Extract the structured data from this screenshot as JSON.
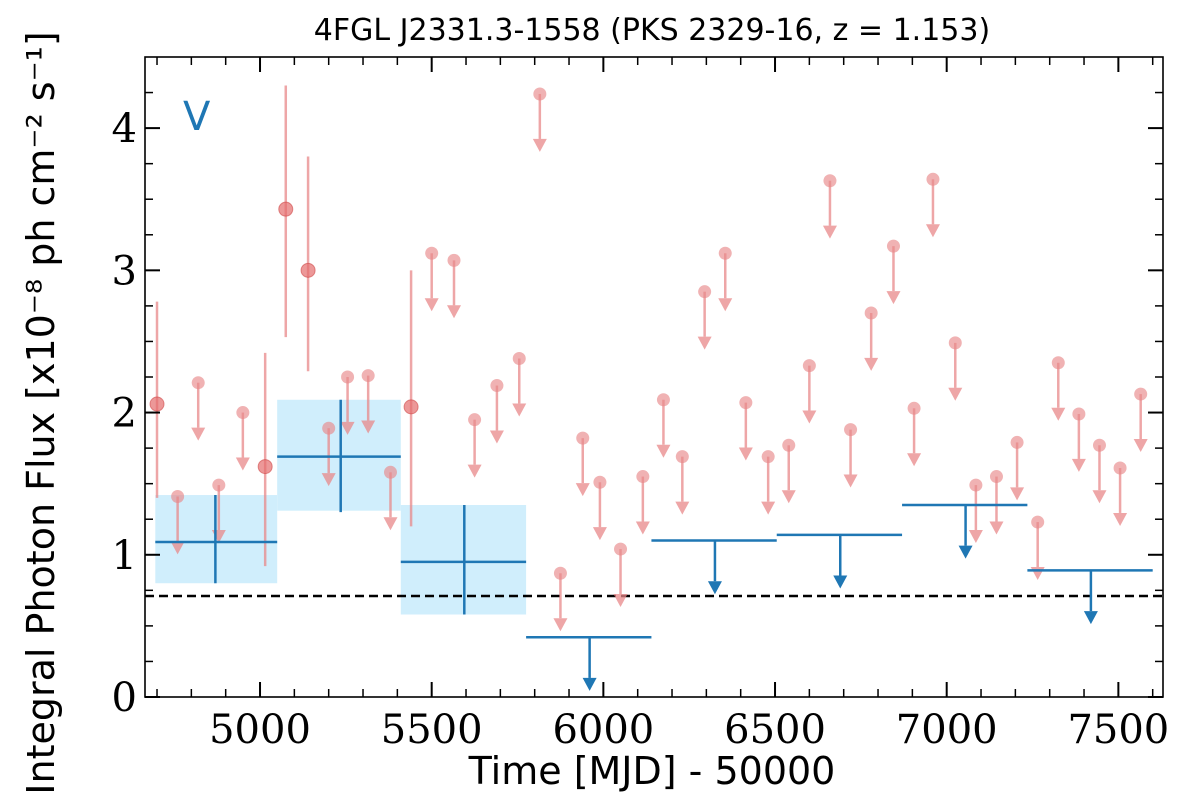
{
  "chart_data": {
    "type": "scatter",
    "title": "4FGL J2331.3-1558 (PKS 2329-16, z = 1.153)",
    "band_label": "V",
    "xlabel": "Time [MJD] - 50000",
    "ylabel": "Integral Photon Flux [x10⁻⁸ ph cm⁻² s⁻¹]",
    "xlim": [
      4665,
      7630
    ],
    "ylim": [
      0,
      4.5
    ],
    "x_ticks": [
      5000,
      5500,
      6000,
      6500,
      7000,
      7500
    ],
    "x_tick_labels": [
      "5000",
      "5500",
      "6000",
      "6500",
      "7000",
      "7500"
    ],
    "y_ticks": [
      0,
      1,
      2,
      3,
      4
    ],
    "y_tick_labels": [
      "0",
      "1",
      "2",
      "3",
      "4"
    ],
    "reference_level": 0.71,
    "colors": {
      "short_bin": "#e8888a",
      "short_bin_face": "#e46c6c",
      "long_bin": "#1f77b4",
      "long_bin_band": "#d0eefc",
      "reference_line": "#000000"
    },
    "short_bin_detections": [
      {
        "x": 4700,
        "y": 2.06,
        "y_low": 1.4,
        "y_high": 2.78
      },
      {
        "x": 5015,
        "y": 1.62,
        "y_low": 0.92,
        "y_high": 2.42
      },
      {
        "x": 5075,
        "y": 3.43,
        "y_low": 2.53,
        "y_high": 4.3
      },
      {
        "x": 5140,
        "y": 3.0,
        "y_low": 2.29,
        "y_high": 3.8
      },
      {
        "x": 5440,
        "y": 2.04,
        "y_low": 1.2,
        "y_high": 3.0
      }
    ],
    "short_bin_upper_limits": [
      {
        "x": 4760,
        "y": 1.41
      },
      {
        "x": 4820,
        "y": 2.21
      },
      {
        "x": 4880,
        "y": 1.49
      },
      {
        "x": 4950,
        "y": 2.0
      },
      {
        "x": 5200,
        "y": 1.89
      },
      {
        "x": 5255,
        "y": 2.25
      },
      {
        "x": 5315,
        "y": 2.26
      },
      {
        "x": 5380,
        "y": 1.58
      },
      {
        "x": 5500,
        "y": 3.12
      },
      {
        "x": 5565,
        "y": 3.07
      },
      {
        "x": 5625,
        "y": 1.95
      },
      {
        "x": 5690,
        "y": 2.19
      },
      {
        "x": 5755,
        "y": 2.38
      },
      {
        "x": 5815,
        "y": 4.24
      },
      {
        "x": 5875,
        "y": 0.87
      },
      {
        "x": 5940,
        "y": 1.82
      },
      {
        "x": 5990,
        "y": 1.51
      },
      {
        "x": 6050,
        "y": 1.04
      },
      {
        "x": 6115,
        "y": 1.55
      },
      {
        "x": 6175,
        "y": 2.09
      },
      {
        "x": 6230,
        "y": 1.69
      },
      {
        "x": 6295,
        "y": 2.85
      },
      {
        "x": 6355,
        "y": 3.12
      },
      {
        "x": 6415,
        "y": 2.07
      },
      {
        "x": 6480,
        "y": 1.69
      },
      {
        "x": 6540,
        "y": 1.77
      },
      {
        "x": 6600,
        "y": 2.33
      },
      {
        "x": 6660,
        "y": 3.63
      },
      {
        "x": 6720,
        "y": 1.88
      },
      {
        "x": 6780,
        "y": 2.7
      },
      {
        "x": 6845,
        "y": 3.17
      },
      {
        "x": 6905,
        "y": 2.03
      },
      {
        "x": 6960,
        "y": 3.64
      },
      {
        "x": 7025,
        "y": 2.49
      },
      {
        "x": 7085,
        "y": 1.49
      },
      {
        "x": 7145,
        "y": 1.55
      },
      {
        "x": 7205,
        "y": 1.79
      },
      {
        "x": 7265,
        "y": 1.23
      },
      {
        "x": 7325,
        "y": 2.35
      },
      {
        "x": 7385,
        "y": 1.99
      },
      {
        "x": 7445,
        "y": 1.77
      },
      {
        "x": 7505,
        "y": 1.61
      },
      {
        "x": 7565,
        "y": 2.13
      }
    ],
    "long_bin_detections": [
      {
        "x": 4870,
        "x_low": 4695,
        "x_high": 5050,
        "y": 1.09,
        "y_low": 0.8,
        "y_high": 1.42,
        "band_low": 0.8,
        "band_high": 1.42
      },
      {
        "x": 5235,
        "x_low": 5050,
        "x_high": 5410,
        "y": 1.69,
        "y_low": 1.3,
        "y_high": 2.09,
        "band_low": 1.31,
        "band_high": 2.09
      },
      {
        "x": 5595,
        "x_low": 5410,
        "x_high": 5775,
        "y": 0.95,
        "y_low": 0.58,
        "y_high": 1.35,
        "band_low": 0.58,
        "band_high": 1.35
      }
    ],
    "long_bin_upper_limits": [
      {
        "x": 5960,
        "x_low": 5775,
        "x_high": 6140,
        "y": 0.42
      },
      {
        "x": 6325,
        "x_low": 6140,
        "x_high": 6505,
        "y": 1.1
      },
      {
        "x": 6690,
        "x_low": 6505,
        "x_high": 6870,
        "y": 1.14
      },
      {
        "x": 7055,
        "x_low": 6870,
        "x_high": 7235,
        "y": 1.35
      },
      {
        "x": 7420,
        "x_low": 7235,
        "x_high": 7600,
        "y": 0.89
      }
    ]
  }
}
